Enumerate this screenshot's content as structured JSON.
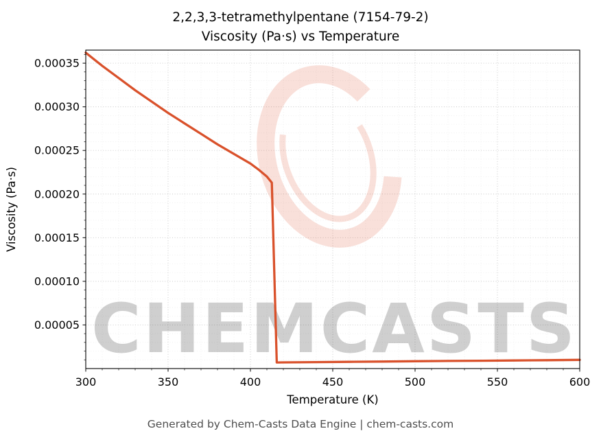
{
  "title": {
    "line1": "2,2,3,3-tetramethylpentane (7154-79-2)",
    "line2": "Viscosity (Pa·s) vs Temperature"
  },
  "footer": "Generated by Chem-Casts Data Engine | chem-casts.com",
  "watermark": {
    "text": "CHEMCASTS",
    "logo": "ring-swirl-icon"
  },
  "chart_data": {
    "type": "line",
    "title": "2,2,3,3-tetramethylpentane (7154-79-2) — Viscosity (Pa·s) vs Temperature",
    "xlabel": "Temperature (K)",
    "ylabel": "Viscosity (Pa·s)",
    "xlim": [
      300,
      600
    ],
    "ylim": [
      0,
      0.000365
    ],
    "x_ticks": [
      300,
      350,
      400,
      450,
      500,
      550,
      600
    ],
    "y_ticks": [
      5e-05,
      0.0001,
      0.00015,
      0.0002,
      0.00025,
      0.0003,
      0.00035
    ],
    "grid": true,
    "legend": "none",
    "colors": {
      "watermark": "#e05a3c",
      "grid_major": "#c6c6c6",
      "grid_minor": "#eaeaea",
      "frame": "#000000"
    },
    "series": [
      {
        "name": "Viscosity",
        "color": "#d9512b",
        "x": [
          300,
          310,
          320,
          330,
          340,
          350,
          360,
          370,
          380,
          390,
          400,
          405,
          410,
          413,
          416,
          420,
          440,
          460,
          480,
          500,
          520,
          540,
          560,
          580,
          600
        ],
        "y": [
          0.000362,
          0.000347,
          0.000333,
          0.000319,
          0.000306,
          0.000293,
          0.000281,
          0.000269,
          0.000257,
          0.000246,
          0.000235,
          0.000228,
          0.00022,
          0.000213,
          7e-06,
          7.1e-06,
          7.4e-06,
          7.7e-06,
          8e-06,
          8.4e-06,
          8.7e-06,
          9e-06,
          9.3e-06,
          9.6e-06,
          1e-05
        ]
      }
    ]
  }
}
